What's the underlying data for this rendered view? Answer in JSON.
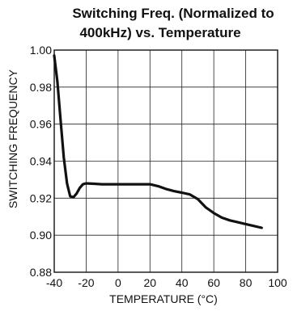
{
  "chart_data": {
    "type": "line",
    "title_lines": [
      "Switching Freq. (Normalized to",
      "400kHz) vs. Temperature"
    ],
    "xlabel": "TEMPERATURE (°C)",
    "ylabel": "SWITCHING FREQUENCY",
    "xlim": [
      -40,
      100
    ],
    "ylim": [
      0.88,
      1.0
    ],
    "x_ticks": [
      "-40",
      "-20",
      "0",
      "20",
      "40",
      "60",
      "80",
      "100"
    ],
    "y_ticks": [
      "1.00",
      "0.98",
      "0.96",
      "0.94",
      "0.92",
      "0.90",
      "0.88"
    ],
    "grid": true,
    "series": [
      {
        "x": [
          -40,
          -38,
          -36,
          -34,
          -32,
          -30,
          -28,
          -26,
          -24,
          -22,
          -20,
          -15,
          -10,
          0,
          10,
          20,
          25,
          30,
          35,
          40,
          45,
          50,
          55,
          60,
          65,
          70,
          75,
          80,
          85,
          90
        ],
        "y": [
          0.997,
          0.983,
          0.962,
          0.942,
          0.928,
          0.921,
          0.9205,
          0.9225,
          0.9255,
          0.9275,
          0.928,
          0.9278,
          0.9275,
          0.9275,
          0.9275,
          0.9275,
          0.9265,
          0.925,
          0.9238,
          0.923,
          0.922,
          0.9195,
          0.915,
          0.912,
          0.9095,
          0.908,
          0.907,
          0.906,
          0.905,
          0.904
        ]
      }
    ]
  }
}
